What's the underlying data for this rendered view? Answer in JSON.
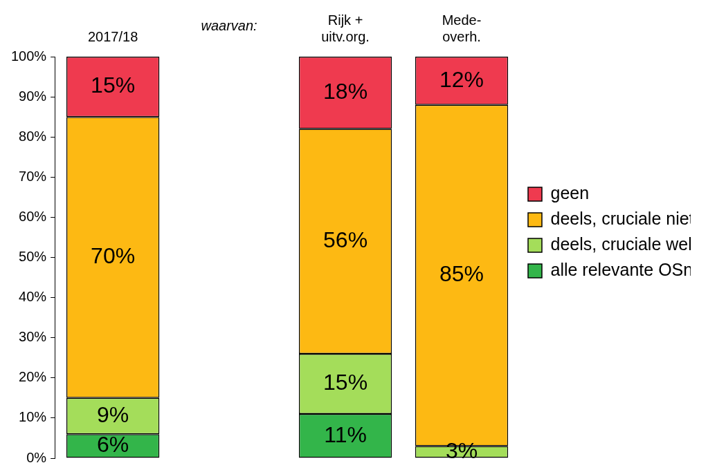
{
  "chart_data": {
    "type": "bar",
    "stacked": true,
    "categories": [
      "2017/18",
      null,
      [
        "Rijk +",
        "uitv.org."
      ],
      [
        "Mede-",
        "overh."
      ]
    ],
    "annotation": "waarvan:",
    "series": [
      {
        "name": "alle relevante OSn",
        "color": "#33b54a",
        "values": [
          6,
          null,
          11,
          null
        ],
        "value_labels": [
          "6%",
          null,
          "11%",
          null
        ]
      },
      {
        "name": "deels, cruciale wel",
        "color": "#a4dd5a",
        "values": [
          9,
          null,
          15,
          3
        ],
        "value_labels": [
          "9%",
          null,
          "15%",
          "3%"
        ]
      },
      {
        "name": "deels, cruciale niet",
        "color": "#fdb913",
        "values": [
          70,
          null,
          56,
          85
        ],
        "value_labels": [
          "70%",
          null,
          "56%",
          "85%"
        ]
      },
      {
        "name": "geen",
        "color": "#ef3a4f",
        "values": [
          15,
          null,
          18,
          12
        ],
        "value_labels": [
          "15%",
          null,
          "18%",
          "12%"
        ]
      }
    ],
    "ylim": [
      0,
      100
    ],
    "yticks": [
      {
        "value": 0,
        "label": "0%"
      },
      {
        "value": 10,
        "label": "10%"
      },
      {
        "value": 20,
        "label": "20%"
      },
      {
        "value": 30,
        "label": "30%"
      },
      {
        "value": 40,
        "label": "40%"
      },
      {
        "value": 50,
        "label": "50%"
      },
      {
        "value": 60,
        "label": "60%"
      },
      {
        "value": 70,
        "label": "70%"
      },
      {
        "value": 80,
        "label": "80%"
      },
      {
        "value": 90,
        "label": "90%"
      },
      {
        "value": 100,
        "label": "100%"
      }
    ],
    "grid": false,
    "legend": "right",
    "data_labels": true
  }
}
